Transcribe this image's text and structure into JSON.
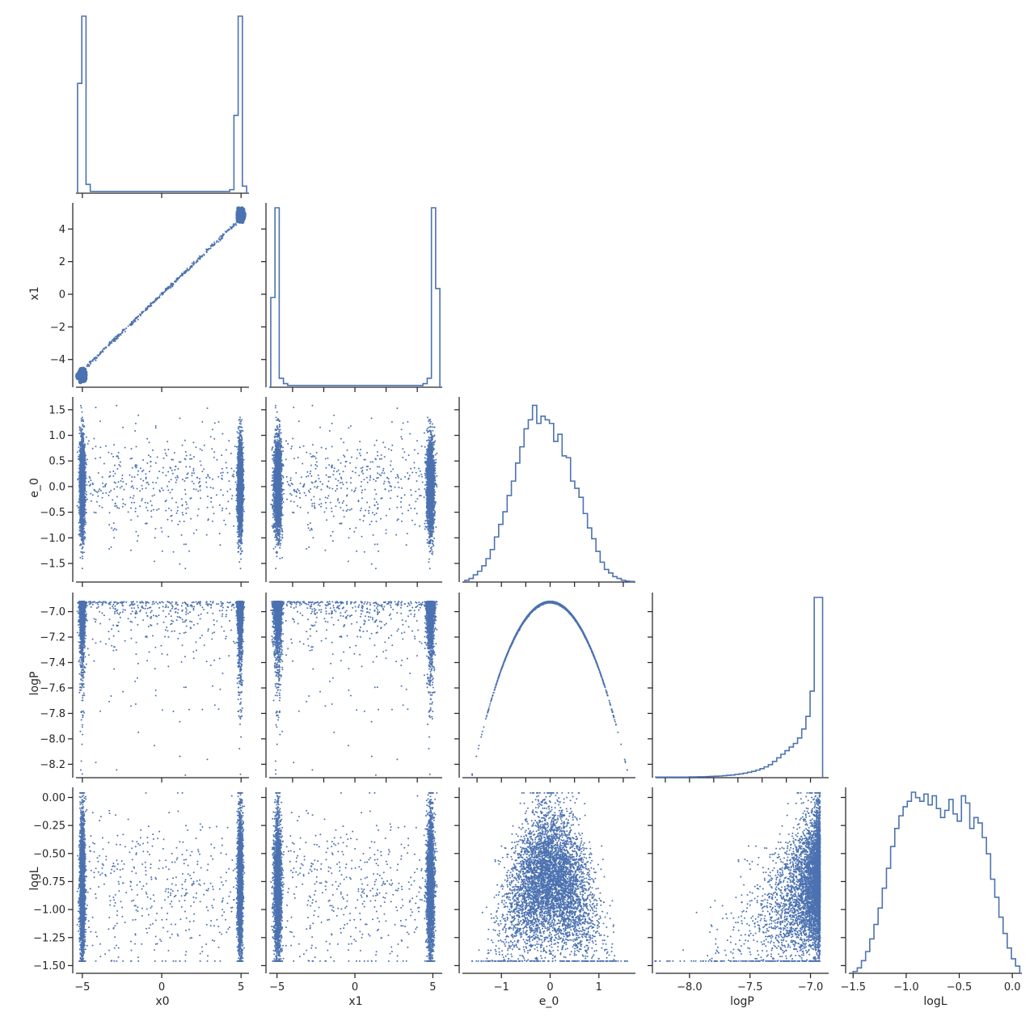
{
  "chart_data": {
    "type": "scatter",
    "title": "",
    "variables": [
      "x0",
      "x1",
      "e_0",
      "logP",
      "logL"
    ],
    "axis_labels": {
      "x0": "x0",
      "x1": "x1",
      "e_0": "e_0",
      "logP": "logP",
      "logL": "logL"
    },
    "ranges": {
      "x0": [
        -5.4,
        5.5
      ],
      "x1": [
        -5.5,
        5.6
      ],
      "e_0": [
        -1.8,
        1.75
      ],
      "logP": [
        -8.28,
        -6.85
      ],
      "logL": [
        -1.54,
        0.09
      ]
    },
    "ticks": {
      "x0": [
        -5,
        0,
        5
      ],
      "x1": [
        -4,
        -2,
        0,
        2,
        4
      ],
      "x1_bottom": [
        -5,
        0,
        5
      ],
      "e_0": [
        -1.5,
        -1.0,
        -0.5,
        0.0,
        0.5,
        1.0,
        1.5
      ],
      "e_0_bottom": [
        -1,
        0,
        1
      ],
      "logP": [
        -8.2,
        -8.0,
        -7.8,
        -7.6,
        -7.4,
        -7.2,
        -7.0
      ],
      "logP_bottom": [
        -8.0,
        -7.5,
        -7.0
      ],
      "logL": [
        -1.5,
        -1.25,
        -1.0,
        -0.75,
        -0.5,
        -0.25,
        0.0
      ],
      "logL_bottom": [
        -1.5,
        -1.0,
        -0.5,
        0.0
      ]
    },
    "tick_text": {
      "x0": [
        "−5",
        "0",
        "5"
      ],
      "x1": [
        "−4",
        "−2",
        "0",
        "2",
        "4"
      ],
      "x1_bottom": [
        "−5",
        "0",
        "5"
      ],
      "e_0": [
        "−1.5",
        "−1.0",
        "−0.5",
        "0.0",
        "0.5",
        "1.0",
        "1.5"
      ],
      "e_0_bottom": [
        "−1",
        "0",
        "1"
      ],
      "logP": [
        "−8.2",
        "−8.0",
        "−7.8",
        "−7.6",
        "−7.4",
        "−7.2",
        "−7.0"
      ],
      "logP_bottom": [
        "−8.0",
        "−7.5",
        "−7.0"
      ],
      "logL": [
        "−1.50",
        "−1.25",
        "−1.00",
        "−0.75",
        "−0.50",
        "−0.25",
        "0.00"
      ],
      "logL_bottom": [
        "−1.5",
        "−1.0",
        "−0.5",
        "0.0"
      ]
    },
    "histograms": {
      "x0": [
        0.62,
        1.0,
        0.05,
        0.01,
        0.01,
        0.01,
        0.01,
        0.01,
        0.01,
        0.01,
        0.01,
        0.01,
        0.01,
        0.01,
        0.01,
        0.01,
        0.01,
        0.01,
        0.01,
        0.01,
        0.01,
        0.01,
        0.01,
        0.01,
        0.01,
        0.01,
        0.01,
        0.01,
        0.01,
        0.01,
        0.01,
        0.01,
        0.01,
        0.01,
        0.01,
        0.01,
        0.02,
        0.44,
        1.0,
        0.04
      ],
      "x1": [
        0.5,
        1.0,
        0.05,
        0.02,
        0.01,
        0.01,
        0.01,
        0.01,
        0.01,
        0.01,
        0.01,
        0.01,
        0.01,
        0.01,
        0.01,
        0.01,
        0.01,
        0.01,
        0.01,
        0.01,
        0.01,
        0.01,
        0.01,
        0.01,
        0.01,
        0.01,
        0.01,
        0.01,
        0.01,
        0.01,
        0.01,
        0.01,
        0.01,
        0.01,
        0.01,
        0.01,
        0.02,
        0.05,
        1.0,
        0.55
      ],
      "e_0": [
        0.01,
        0.02,
        0.04,
        0.06,
        0.09,
        0.13,
        0.18,
        0.25,
        0.32,
        0.39,
        0.48,
        0.56,
        0.66,
        0.75,
        0.85,
        0.9,
        0.98,
        0.88,
        0.92,
        0.9,
        0.88,
        0.78,
        0.82,
        0.7,
        0.69,
        0.56,
        0.52,
        0.47,
        0.38,
        0.3,
        0.24,
        0.17,
        0.11,
        0.07,
        0.05,
        0.03,
        0.02,
        0.01,
        0.005,
        0.003
      ],
      "logP": [
        0.003,
        0.003,
        0.003,
        0.003,
        0.003,
        0.003,
        0.003,
        0.003,
        0.004,
        0.004,
        0.005,
        0.005,
        0.006,
        0.007,
        0.008,
        0.009,
        0.011,
        0.013,
        0.015,
        0.018,
        0.021,
        0.025,
        0.03,
        0.035,
        0.042,
        0.05,
        0.06,
        0.072,
        0.09,
        0.11,
        0.13,
        0.15,
        0.17,
        0.19,
        0.22,
        0.27,
        0.34,
        0.48,
        1.0,
        1.0
      ],
      "logL": [
        0.01,
        0.03,
        0.07,
        0.12,
        0.19,
        0.27,
        0.36,
        0.47,
        0.58,
        0.7,
        0.8,
        0.87,
        0.92,
        0.95,
        1.0,
        0.97,
        0.95,
        0.99,
        0.93,
        0.98,
        0.91,
        0.86,
        0.9,
        0.96,
        0.88,
        0.84,
        0.98,
        0.94,
        0.8,
        0.86,
        0.83,
        0.75,
        0.66,
        0.52,
        0.42,
        0.31,
        0.22,
        0.14,
        0.08,
        0.04
      ]
    },
    "relations": {
      "x1_vs_x0": "near-identity line x1 ≈ 0.93·x0, dense clusters at ±5",
      "logP_vs_e_0": "parabola logP ≈ -6.92 - 0.53·e_0²"
    },
    "style": {
      "color": "#4c72b0",
      "grid": false,
      "layout": "corner"
    }
  }
}
